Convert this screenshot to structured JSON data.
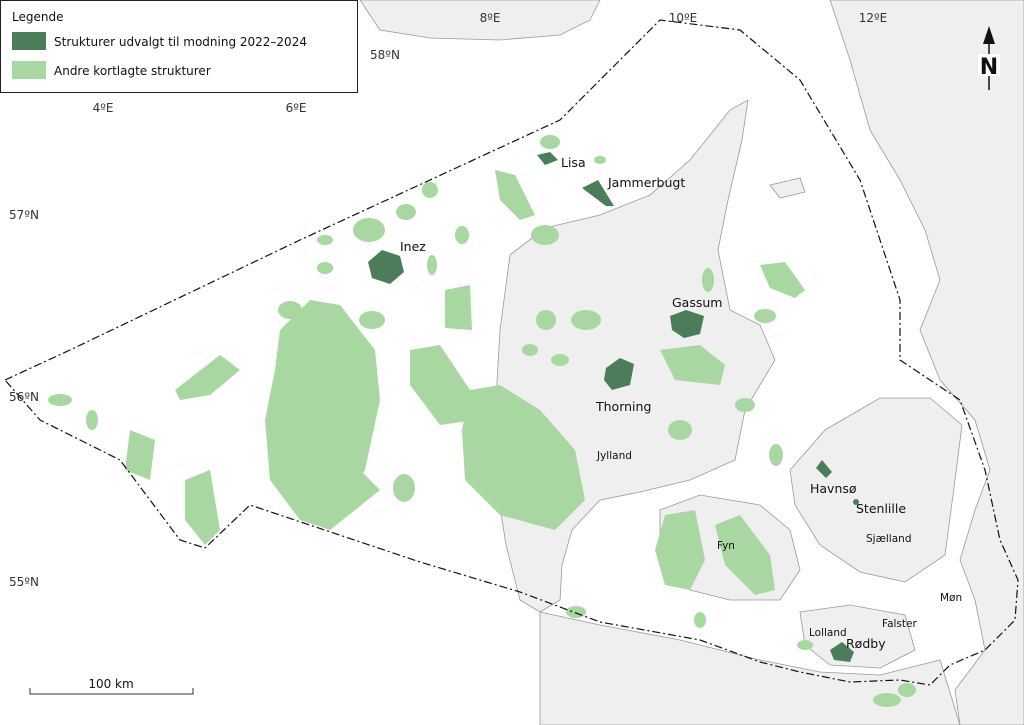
{
  "legend": {
    "title": "Legende",
    "items": [
      {
        "label": "Strukturer udvalgt til modning 2022–2024",
        "color": "#4b7d5a"
      },
      {
        "label": "Andre kortlagte strukturer",
        "color": "#a9d7a1"
      }
    ]
  },
  "longitude_labels": [
    "4ºE",
    "6ºE",
    "8ºE",
    "10ºE",
    "12ºE"
  ],
  "latitude_labels": [
    "58ºN",
    "57ºN",
    "56ºN",
    "55ºN"
  ],
  "selected_structures": [
    "Lisa",
    "Jammerbugt",
    "Inez",
    "Gassum",
    "Thorning",
    "Havnsø",
    "Stenlille",
    "Rødby"
  ],
  "regions": [
    "Jylland",
    "Fyn",
    "Sjælland",
    "Lolland",
    "Falster",
    "Møn"
  ],
  "scale_bar": "100 km",
  "north_arrow": "N"
}
